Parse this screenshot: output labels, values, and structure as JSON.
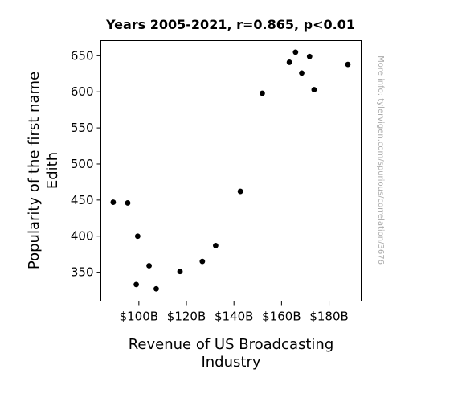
{
  "chart_data": {
    "type": "scatter",
    "title": "Years 2005-2021, r=0.865, p<0.01",
    "xlabel_lines": [
      "Revenue of US Broadcasting",
      "Industry"
    ],
    "ylabel_lines": [
      "Popularity of the first name",
      "Edith"
    ],
    "xlim": [
      84,
      193.5
    ],
    "ylim": [
      310,
      671
    ],
    "x_ticks": [
      {
        "value": 100,
        "label": "$100B"
      },
      {
        "value": 120,
        "label": "$120B"
      },
      {
        "value": 140,
        "label": "$140B"
      },
      {
        "value": 160,
        "label": "$160B"
      },
      {
        "value": 180,
        "label": "$180B"
      }
    ],
    "y_ticks": [
      {
        "value": 350,
        "label": "350"
      },
      {
        "value": 400,
        "label": "400"
      },
      {
        "value": 450,
        "label": "450"
      },
      {
        "value": 500,
        "label": "500"
      },
      {
        "value": 550,
        "label": "550"
      },
      {
        "value": 600,
        "label": "600"
      },
      {
        "value": 650,
        "label": "650"
      }
    ],
    "points": [
      {
        "x": 89.2,
        "y": 447
      },
      {
        "x": 95.3,
        "y": 446
      },
      {
        "x": 99.5,
        "y": 400
      },
      {
        "x": 98.9,
        "y": 333
      },
      {
        "x": 104.3,
        "y": 359
      },
      {
        "x": 107.3,
        "y": 327
      },
      {
        "x": 117.3,
        "y": 351
      },
      {
        "x": 126.7,
        "y": 365
      },
      {
        "x": 132.3,
        "y": 387
      },
      {
        "x": 142.7,
        "y": 462
      },
      {
        "x": 151.9,
        "y": 598
      },
      {
        "x": 163.3,
        "y": 641
      },
      {
        "x": 165.9,
        "y": 655
      },
      {
        "x": 168.5,
        "y": 626
      },
      {
        "x": 171.8,
        "y": 649
      },
      {
        "x": 173.7,
        "y": 603
      },
      {
        "x": 187.9,
        "y": 638
      }
    ],
    "marker_color": "#000000",
    "grid": false,
    "legend": "none",
    "watermark": "More info: tylervigen.com/spurious/correlation/3676"
  }
}
